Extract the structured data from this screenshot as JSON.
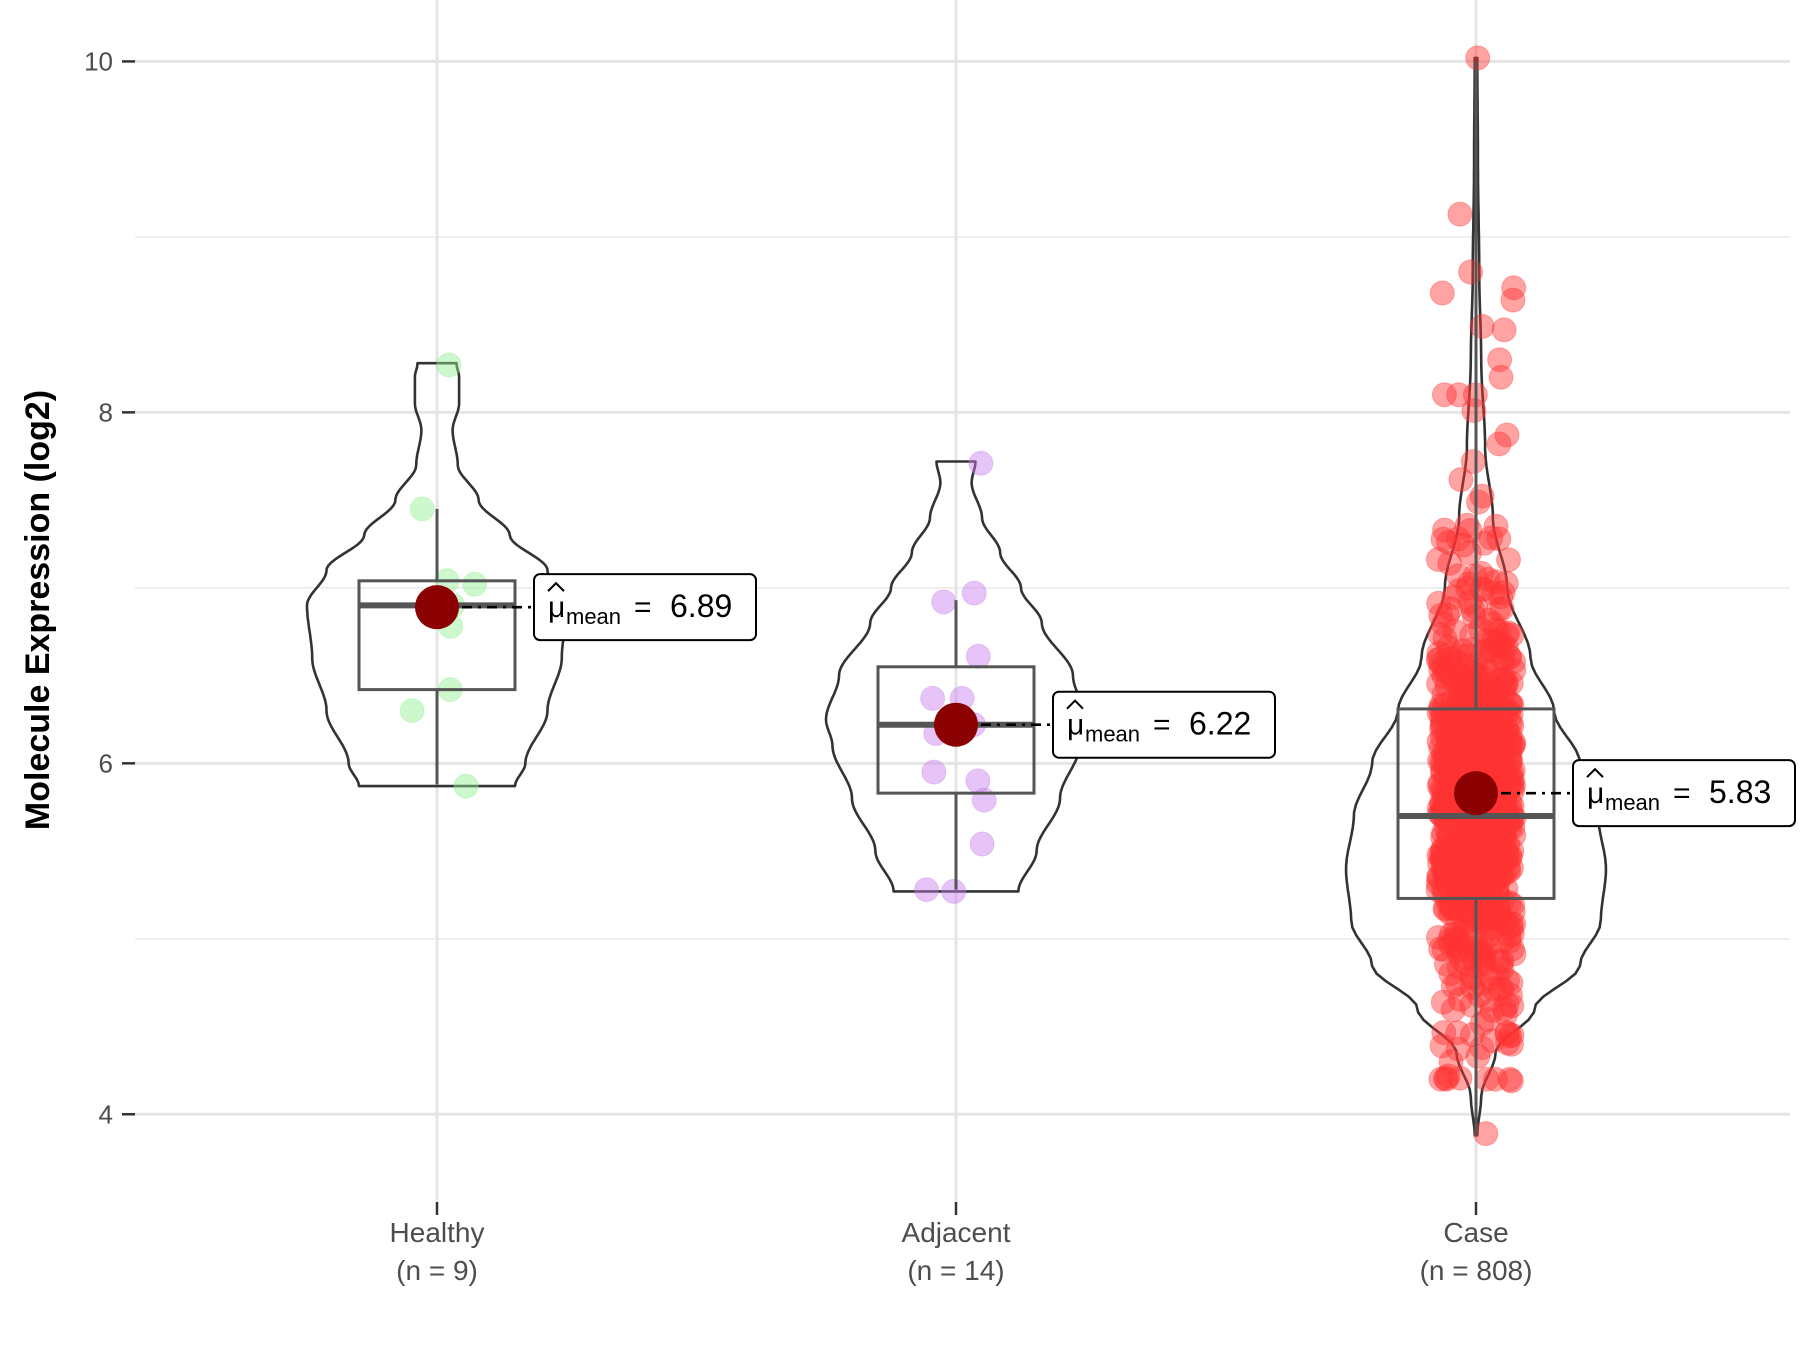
{
  "chart_data": {
    "type": "violin",
    "title": "",
    "xlabel": "",
    "ylabel": "Molecule Expression (log2)",
    "ylim": [
      3.5,
      10.35
    ],
    "y_ticks": [
      4,
      6,
      8,
      10
    ],
    "y_tick_labels": [
      "4",
      "6",
      "8",
      "10"
    ],
    "grid": true,
    "groups": [
      {
        "name": "Healthy",
        "n_label": "(n = 9)",
        "color": "#90EE90",
        "box": {
          "q1": 6.42,
          "median": 6.9,
          "q3": 7.04,
          "whisker_low": 5.88,
          "whisker_high": 7.45
        },
        "mean": 6.89,
        "mean_label": "6.89",
        "violin_range": [
          5.87,
          8.28
        ],
        "violin_shape": [
          [
            5.87,
            0.6
          ],
          [
            6.0,
            0.68
          ],
          [
            6.3,
            0.85
          ],
          [
            6.6,
            0.96
          ],
          [
            6.9,
            1.0
          ],
          [
            7.1,
            0.85
          ],
          [
            7.3,
            0.56
          ],
          [
            7.5,
            0.32
          ],
          [
            7.7,
            0.16
          ],
          [
            7.9,
            0.12
          ],
          [
            8.05,
            0.17
          ],
          [
            8.2,
            0.17
          ],
          [
            8.28,
            0.15
          ]
        ],
        "points": [
          8.27,
          7.45,
          7.04,
          7.02,
          6.78,
          6.42,
          6.3,
          5.87,
          6.9
        ]
      },
      {
        "name": "Adjacent",
        "n_label": "(n = 14)",
        "color": "#C77CEE",
        "box": {
          "q1": 5.83,
          "median": 6.22,
          "q3": 6.55,
          "whisker_low": 5.28,
          "whisker_high": 6.93
        },
        "mean": 6.22,
        "mean_label": "6.22",
        "violin_range": [
          5.27,
          7.72
        ],
        "violin_shape": [
          [
            5.27,
            0.48
          ],
          [
            5.5,
            0.62
          ],
          [
            5.8,
            0.8
          ],
          [
            6.1,
            0.95
          ],
          [
            6.25,
            1.0
          ],
          [
            6.5,
            0.9
          ],
          [
            6.8,
            0.66
          ],
          [
            7.0,
            0.5
          ],
          [
            7.2,
            0.34
          ],
          [
            7.4,
            0.2
          ],
          [
            7.6,
            0.12
          ],
          [
            7.72,
            0.15
          ]
        ],
        "points": [
          7.71,
          6.97,
          6.92,
          6.61,
          6.37,
          6.37,
          6.17,
          5.95,
          5.9,
          5.79,
          5.54,
          5.28,
          5.27,
          6.22
        ]
      },
      {
        "name": "Case",
        "n_label": "(n = 808)",
        "color": "#FF3333",
        "box": {
          "q1": 5.23,
          "median": 5.7,
          "q3": 6.31,
          "whisker_low": 3.88,
          "whisker_high": 10.0
        },
        "mean": 5.83,
        "mean_label": "5.83",
        "violin_range": [
          3.88,
          10.02
        ],
        "violin_shape": [
          [
            3.88,
            0.01
          ],
          [
            4.1,
            0.04
          ],
          [
            4.35,
            0.15
          ],
          [
            4.6,
            0.45
          ],
          [
            4.85,
            0.8
          ],
          [
            5.1,
            0.96
          ],
          [
            5.4,
            1.0
          ],
          [
            5.7,
            0.94
          ],
          [
            6.0,
            0.8
          ],
          [
            6.3,
            0.6
          ],
          [
            6.6,
            0.42
          ],
          [
            7.0,
            0.24
          ],
          [
            7.4,
            0.13
          ],
          [
            7.8,
            0.07
          ],
          [
            8.3,
            0.04
          ],
          [
            8.8,
            0.025
          ],
          [
            9.4,
            0.015
          ],
          [
            10.02,
            0.01
          ]
        ],
        "points_n": 808,
        "extreme_points": [
          10.02,
          9.13,
          8.8,
          8.71,
          8.68,
          8.64,
          8.49,
          8.47,
          8.3,
          8.2,
          3.89,
          4.19,
          4.33,
          4.42,
          4.45
        ]
      }
    ]
  }
}
